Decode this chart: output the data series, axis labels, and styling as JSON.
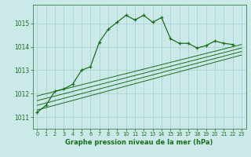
{
  "title": "Graphe pression niveau de la mer (hPa)",
  "background_color": "#cce9e9",
  "grid_color": "#aad4d4",
  "line_color": "#1a6e1a",
  "x_ticks": [
    0,
    1,
    2,
    3,
    4,
    5,
    6,
    7,
    8,
    9,
    10,
    11,
    12,
    13,
    14,
    15,
    16,
    17,
    18,
    19,
    20,
    21,
    22,
    23
  ],
  "y_ticks": [
    1011,
    1012,
    1013,
    1014,
    1015
  ],
  "ylim": [
    1010.5,
    1015.8
  ],
  "xlim": [
    -0.5,
    23.5
  ],
  "series1": {
    "x": [
      0,
      1,
      2,
      3,
      4,
      5,
      6,
      7,
      8,
      9,
      10,
      11,
      12,
      13,
      14,
      15,
      16,
      17,
      18,
      19,
      20,
      21,
      22
    ],
    "y": [
      1011.2,
      1011.5,
      1012.1,
      1012.2,
      1012.4,
      1013.0,
      1013.15,
      1014.2,
      1014.75,
      1015.05,
      1015.35,
      1015.15,
      1015.35,
      1015.05,
      1015.25,
      1014.35,
      1014.15,
      1014.15,
      1013.95,
      1014.05,
      1014.25,
      1014.15,
      1014.1
    ]
  },
  "series2": {
    "x": [
      0,
      23
    ],
    "y": [
      1011.9,
      1014.1
    ]
  },
  "series3": {
    "x": [
      0,
      23
    ],
    "y": [
      1011.7,
      1013.95
    ]
  },
  "series4": {
    "x": [
      0,
      23
    ],
    "y": [
      1011.5,
      1013.8
    ]
  },
  "series5": {
    "x": [
      0,
      23
    ],
    "y": [
      1011.3,
      1013.65
    ]
  }
}
